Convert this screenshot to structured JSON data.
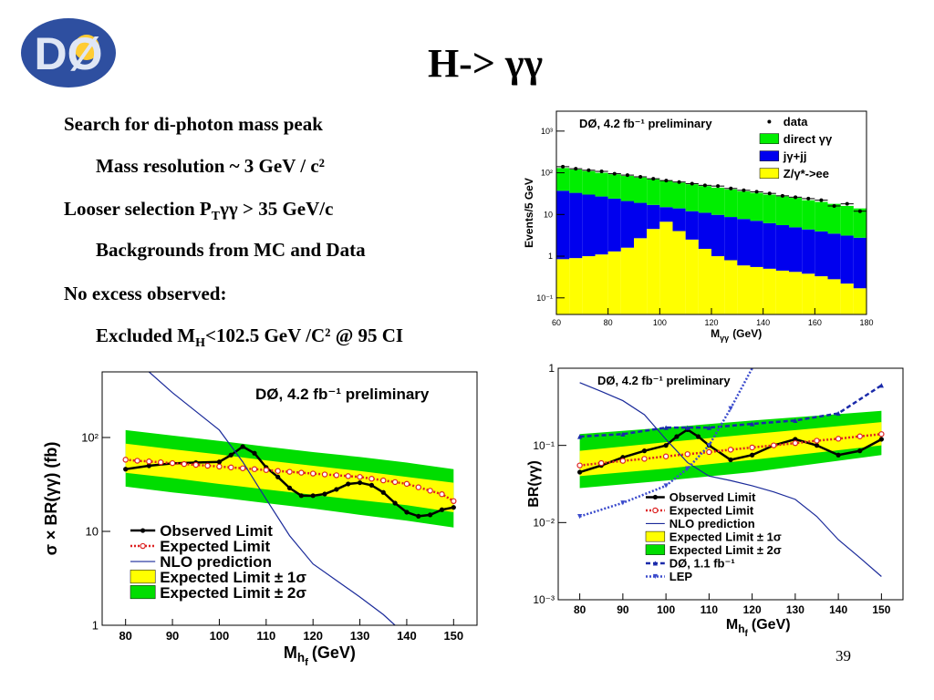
{
  "logo": "DØ",
  "title": "H-> γγ",
  "page_number": "39",
  "bullets": [
    {
      "level": 1,
      "parts": [
        "Search for di-photon mass peak"
      ]
    },
    {
      "level": 2,
      "parts": [
        "Mass resolution ~ 3 GeV / c²"
      ]
    },
    {
      "level": 1,
      "parts": [
        "Looser selection P",
        "T",
        "γγ > 35 GeV/c"
      ]
    },
    {
      "level": 2,
      "parts": [
        "Backgrounds from MC and Data"
      ]
    },
    {
      "level": 1,
      "parts": [
        "No excess observed:"
      ]
    },
    {
      "level": 2,
      "parts": [
        "Excluded M",
        "H",
        "<102.5 GeV /C² @ 95 CI"
      ]
    }
  ],
  "chart_data": [
    {
      "type": "histogram",
      "annotation": "DØ, 4.2 fb⁻¹ preliminary",
      "xlabel": [
        "M",
        "γγ",
        "(GeV)"
      ],
      "ylabel": "Events/5 GeV",
      "log_y": true,
      "bins": [
        60,
        65,
        70,
        75,
        80,
        85,
        90,
        95,
        100,
        105,
        110,
        115,
        120,
        125,
        130,
        135,
        140,
        145,
        150,
        155,
        160,
        165,
        170,
        175,
        180
      ],
      "xlim": [
        60,
        180
      ],
      "xticks": [
        60,
        80,
        100,
        120,
        140,
        160,
        180
      ],
      "ylim": [
        0.04,
        3000
      ],
      "yticks": [
        {
          "value": 0.1,
          "label": "10⁻¹"
        },
        1,
        10,
        {
          "value": 100,
          "label": "10²"
        },
        {
          "value": 1000,
          "label": "10³"
        }
      ],
      "series": [
        {
          "name": "data",
          "color": "#000000",
          "marker": "point",
          "values": [
            140,
            125,
            115,
            108,
            95,
            88,
            80,
            72,
            65,
            60,
            55,
            50,
            48,
            42,
            38,
            35,
            32,
            28,
            26,
            24,
            22,
            16,
            18,
            12
          ]
        },
        {
          "name": "direct γγ",
          "color": "#00ee00",
          "values": [
            93,
            87,
            80,
            73,
            68,
            63,
            58,
            53,
            49,
            44,
            41,
            37,
            34.2,
            31.3,
            28.2,
            26,
            23.8,
            21.5,
            20.1,
            17.6,
            16.1,
            14.5,
            12.9,
            11.2
          ]
        },
        {
          "name": "jγ+jj",
          "color": "#0000ee",
          "values": [
            36.2,
            32.1,
            29,
            25.9,
            22.7,
            19.4,
            16.3,
            12.5,
            8.3,
            10,
            9.5,
            9.5,
            8.8,
            7.9,
            7.2,
            6.5,
            5.7,
            5.1,
            4.5,
            4,
            3.6,
            3.2,
            2.9,
            2.6
          ]
        },
        {
          "name": "Z/γ*->ee",
          "color": "#ffff00",
          "values": [
            0.85,
            0.9,
            1,
            1.1,
            1.3,
            1.6,
            2.7,
            4.5,
            6.7,
            4,
            2.5,
            1.5,
            1,
            0.8,
            0.6,
            0.55,
            0.5,
            0.45,
            0.42,
            0.38,
            0.33,
            0.28,
            0.22,
            0.17
          ]
        }
      ]
    },
    {
      "type": "line",
      "annotation": "DØ, 4.2 fb⁻¹ preliminary",
      "xlabel": [
        "M",
        "h",
        "f",
        "(GeV)"
      ],
      "ylabel": "σ × BR(γγ) (fb)",
      "log_y": true,
      "xlim": [
        75,
        155
      ],
      "xticks": [
        80,
        90,
        100,
        110,
        120,
        130,
        140,
        150
      ],
      "ylim": [
        1,
        500
      ],
      "yticks": [
        1,
        10,
        {
          "value": 100,
          "label": "10²"
        }
      ],
      "series": [
        {
          "name": "Observed Limit",
          "color": "#000000",
          "style": "solid",
          "marker": "circle",
          "x": [
            80,
            85,
            90,
            95,
            100,
            102.5,
            105,
            107.5,
            110,
            112.5,
            115,
            117.5,
            120,
            122.5,
            125,
            127.5,
            130,
            132.5,
            135,
            137.5,
            140,
            142.5,
            145,
            147.5,
            150
          ],
          "values": [
            46,
            50,
            53,
            54,
            55,
            65,
            80,
            68,
            48,
            38,
            29,
            24,
            24,
            25,
            28,
            32,
            33,
            31,
            26,
            20,
            16,
            14.5,
            15,
            17,
            18
          ]
        },
        {
          "name": "Expected Limit",
          "color": "#dd2222",
          "style": "dotted",
          "marker": "open-circle",
          "x": [
            80,
            82.5,
            85,
            87.5,
            90,
            92.5,
            95,
            97.5,
            100,
            102.5,
            105,
            107.5,
            110,
            112.5,
            115,
            117.5,
            120,
            122.5,
            125,
            127.5,
            130,
            132.5,
            135,
            137.5,
            140,
            142.5,
            145,
            147.5,
            150
          ],
          "values": [
            58,
            56.5,
            55.6,
            54.4,
            53.3,
            52.2,
            51.1,
            50,
            49,
            48,
            47,
            46,
            45,
            44,
            43.1,
            42.2,
            41.3,
            40.4,
            39.6,
            38.8,
            38,
            36.4,
            34.9,
            33.5,
            32.1,
            29.5,
            27.1,
            24.9,
            21
          ]
        },
        {
          "name": "NLO prediction",
          "color": "#1a2a9a",
          "style": "solid",
          "marker": "none",
          "x": [
            85,
            90,
            95,
            100,
            105,
            110,
            115,
            120,
            125,
            130,
            135,
            137.5
          ],
          "values": [
            500,
            300,
            190,
            120,
            55,
            22,
            9,
            4.5,
            3,
            2,
            1.3,
            1
          ]
        },
        {
          "name": "Expected Limit ± 1σ",
          "color": "#ffff00",
          "x": [
            80,
            90,
            100,
            110,
            120,
            130,
            140,
            150
          ],
          "upper": [
            86,
            75,
            66,
            57,
            50,
            44,
            38,
            33
          ],
          "lower": [
            42,
            37,
            32,
            28,
            24.5,
            21.5,
            19,
            16
          ]
        },
        {
          "name": "Expected Limit ± 2σ",
          "color": "#00dd00",
          "x": [
            80,
            90,
            100,
            110,
            120,
            130,
            140,
            150
          ],
          "upper": [
            120,
            105,
            92,
            80,
            70,
            62,
            54,
            46
          ],
          "lower": [
            30,
            26,
            23,
            20,
            17.5,
            15,
            13,
            11
          ]
        }
      ]
    },
    {
      "type": "line",
      "annotation": "DØ, 4.2 fb⁻¹ preliminary",
      "xlabel": [
        "M",
        "h",
        "f",
        "(GeV)"
      ],
      "ylabel": "BR(γγ)",
      "log_y": true,
      "xlim": [
        75,
        155
      ],
      "xticks": [
        80,
        90,
        100,
        110,
        120,
        130,
        140,
        150
      ],
      "ylim": [
        0.001,
        1
      ],
      "yticks": [
        {
          "value": 0.001,
          "label": "10⁻³"
        },
        {
          "value": 0.01,
          "label": "10⁻²"
        },
        {
          "value": 0.1,
          "label": "10⁻¹"
        },
        1
      ],
      "series": [
        {
          "name": "Observed Limit",
          "color": "#000000",
          "style": "solid",
          "marker": "circle",
          "x": [
            80,
            85,
            90,
            95,
            100,
            102.5,
            105,
            107.5,
            110,
            115,
            120,
            125,
            130,
            135,
            140,
            145,
            150
          ],
          "values": [
            0.045,
            0.055,
            0.07,
            0.085,
            0.1,
            0.13,
            0.16,
            0.13,
            0.1,
            0.065,
            0.075,
            0.1,
            0.12,
            0.1,
            0.075,
            0.085,
            0.12
          ]
        },
        {
          "name": "Expected Limit",
          "color": "#dd2222",
          "style": "dotted",
          "marker": "open-circle",
          "x": [
            80,
            85,
            90,
            95,
            100,
            105,
            110,
            115,
            120,
            125,
            130,
            135,
            140,
            145,
            150
          ],
          "values": [
            0.055,
            0.059,
            0.063,
            0.067,
            0.072,
            0.077,
            0.082,
            0.088,
            0.094,
            0.1,
            0.107,
            0.115,
            0.122,
            0.131,
            0.14
          ]
        },
        {
          "name": "NLO prediction",
          "color": "#1a2a9a",
          "style": "solid",
          "marker": "none",
          "x": [
            80,
            85,
            90,
            95,
            100,
            105,
            110,
            115,
            120,
            125,
            130,
            135,
            140,
            145,
            150
          ],
          "values": [
            0.65,
            0.5,
            0.38,
            0.25,
            0.12,
            0.06,
            0.04,
            0.035,
            0.03,
            0.025,
            0.02,
            0.012,
            0.006,
            0.0035,
            0.002
          ]
        },
        {
          "name": "Expected Limit ± 1σ",
          "color": "#ffff00",
          "x": [
            80,
            100,
            120,
            150
          ],
          "upper": [
            0.085,
            0.11,
            0.14,
            0.2
          ],
          "lower": [
            0.04,
            0.05,
            0.065,
            0.1
          ]
        },
        {
          "name": "Expected Limit ± 2σ",
          "color": "#00dd00",
          "x": [
            80,
            100,
            120,
            150
          ],
          "upper": [
            0.14,
            0.17,
            0.21,
            0.28
          ],
          "lower": [
            0.028,
            0.035,
            0.045,
            0.075
          ]
        },
        {
          "name": "DØ, 1.1 fb⁻¹",
          "color": "#1a2aaa",
          "style": "dashed",
          "marker": "triangle",
          "x": [
            80,
            90,
            100,
            105,
            110,
            120,
            130,
            140,
            150
          ],
          "values": [
            0.13,
            0.14,
            0.17,
            0.17,
            0.17,
            0.19,
            0.21,
            0.26,
            0.6
          ]
        },
        {
          "name": "LEP",
          "color": "#3a4acc",
          "style": "dotted",
          "marker": "triangle-down",
          "x": [
            80,
            90,
            100,
            105,
            110,
            115,
            120
          ],
          "values": [
            0.012,
            0.018,
            0.03,
            0.05,
            0.1,
            0.3,
            1
          ]
        }
      ]
    }
  ]
}
